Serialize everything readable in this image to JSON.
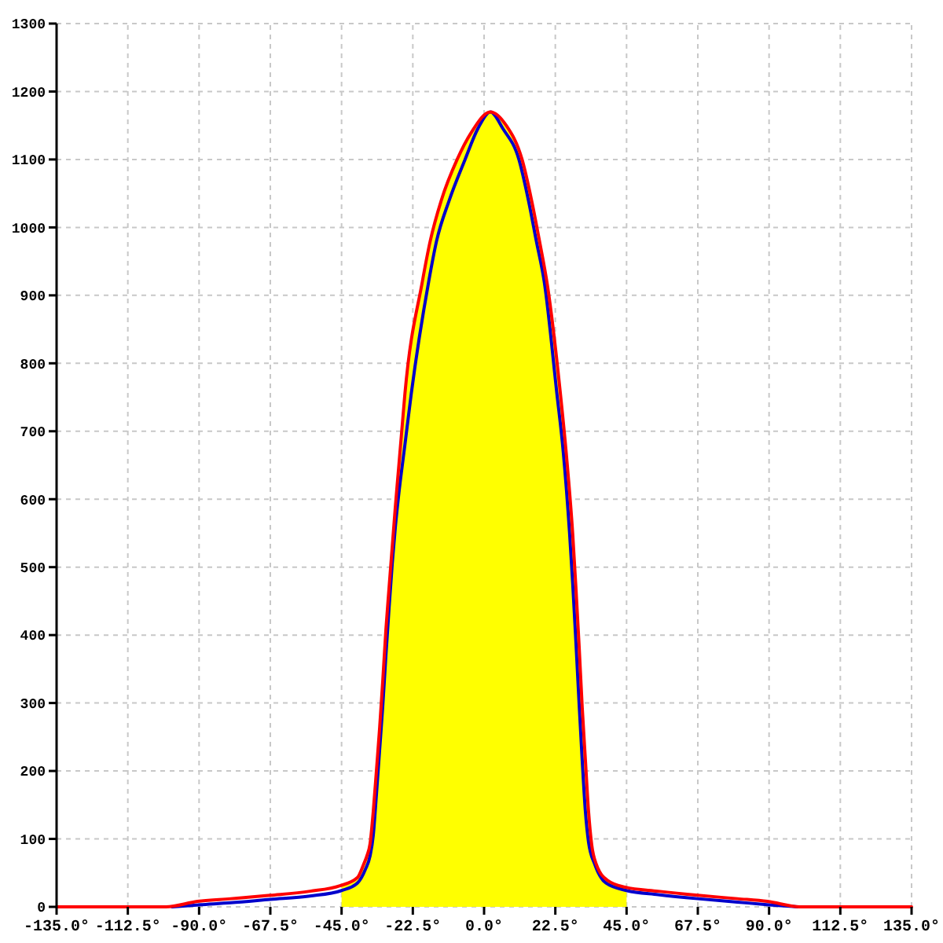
{
  "chart_data": {
    "type": "line",
    "xlim": [
      -135,
      135
    ],
    "ylim": [
      0,
      1300
    ],
    "xticks": [
      {
        "value": -135,
        "label": "-135.0°"
      },
      {
        "value": -112.5,
        "label": "-112.5°"
      },
      {
        "value": -90,
        "label": "-90.0°"
      },
      {
        "value": -67.5,
        "label": "-67.5°"
      },
      {
        "value": -45,
        "label": "-45.0°"
      },
      {
        "value": -22.5,
        "label": "-22.5°"
      },
      {
        "value": 0,
        "label": "0.0°"
      },
      {
        "value": 22.5,
        "label": "22.5°"
      },
      {
        "value": 45,
        "label": "45.0°"
      },
      {
        "value": 67.5,
        "label": "67.5°"
      },
      {
        "value": 90,
        "label": "90.0°"
      },
      {
        "value": 112.5,
        "label": "112.5°"
      },
      {
        "value": 135,
        "label": "135.0°"
      }
    ],
    "yticks": [
      0,
      100,
      200,
      300,
      400,
      500,
      600,
      700,
      800,
      900,
      1000,
      1100,
      1200,
      1300
    ],
    "grid": true,
    "line_style": "solid",
    "series": [
      {
        "type": "area",
        "color": "#ffff00",
        "x": [
          -45,
          -40,
          -38,
          -37,
          -36,
          -35,
          -34,
          -33,
          -32,
          -31,
          -30,
          -29,
          -28,
          -27,
          -26,
          -25,
          -19.5,
          -17,
          -13.5,
          -8.5,
          -4,
          2,
          7,
          12,
          15,
          17.5,
          20,
          24,
          26,
          28,
          29,
          30,
          31,
          32,
          33,
          34,
          35.5,
          39,
          45
        ],
        "values": [
          30,
          43,
          63,
          75,
          93,
          140,
          200,
          262,
          332,
          408,
          470,
          530,
          590,
          645,
          700,
          755,
          920,
          980,
          1040,
          1100,
          1140,
          1170,
          1150,
          1100,
          1040,
          980,
          915,
          760,
          665,
          548,
          470,
          385,
          293,
          216,
          140,
          91,
          62,
          39,
          28
        ]
      },
      {
        "color": "#0000cc",
        "x": [
          -98.5,
          -90,
          -80,
          -67.5,
          -55,
          -45,
          -40,
          -37.5,
          -36,
          -35,
          -34,
          -33,
          -32,
          -31,
          -30,
          -29,
          -28,
          -27,
          -25,
          -23,
          -17.5,
          -15,
          -11,
          -6,
          -2,
          2,
          6,
          11,
          14,
          16.5,
          19,
          23,
          25,
          27,
          28,
          29,
          30,
          31,
          32,
          33,
          35,
          38.5,
          45,
          55,
          67.5,
          80,
          90,
          99
        ],
        "values": [
          0,
          3,
          6,
          11,
          16,
          24,
          35,
          55,
          75,
          105,
          165,
          230,
          295,
          370,
          440,
          505,
          560,
          605,
          680,
          755,
          920,
          980,
          1040,
          1100,
          1145,
          1170,
          1145,
          1100,
          1040,
          980,
          920,
          755,
          670,
          550,
          475,
          390,
          300,
          215,
          140,
          95,
          62,
          35,
          24,
          18,
          12,
          7,
          3,
          0
        ]
      },
      {
        "color": "#ff0000",
        "x": [
          -135,
          -100.5,
          -90.5,
          -80,
          -67.5,
          -55,
          -45.5,
          -40,
          -38,
          -37,
          -36,
          -35,
          -34,
          -33,
          -32,
          -31,
          -30,
          -29,
          -28,
          -27,
          -26,
          -25,
          -19.5,
          -17,
          -13.5,
          -8.5,
          -4,
          2,
          7,
          12,
          15,
          17.5,
          20,
          24,
          26,
          28,
          29,
          30,
          31,
          32,
          33,
          34,
          35.5,
          39,
          44.5,
          55,
          67.5,
          80,
          89.5,
          100,
          135
        ],
        "values": [
          0,
          0,
          8,
          12,
          17,
          23,
          31,
          43,
          63,
          75,
          93,
          140,
          200,
          262,
          332,
          408,
          470,
          530,
          590,
          645,
          700,
          755,
          920,
          980,
          1040,
          1100,
          1140,
          1170,
          1150,
          1100,
          1040,
          980,
          915,
          760,
          665,
          548,
          470,
          385,
          293,
          216,
          140,
          91,
          62,
          39,
          29,
          23,
          17,
          12,
          8,
          0,
          0
        ]
      }
    ]
  }
}
